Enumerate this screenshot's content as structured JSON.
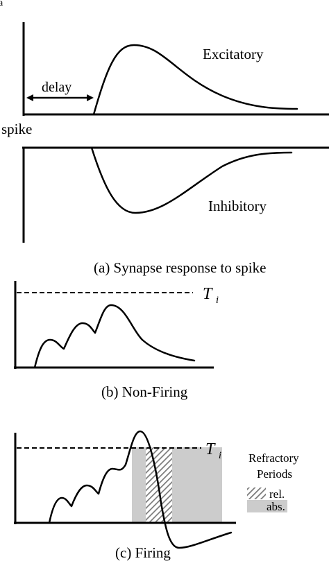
{
  "panel_a": {
    "corner_label": "a",
    "delay_label": "delay",
    "excitatory_label": "Excitatory",
    "spike_label": "spike",
    "inhibitory_label": "Inhibitory",
    "caption": "(a) Synapse response to spike"
  },
  "panel_b": {
    "threshold_symbol": "T",
    "threshold_subscript": "i",
    "caption": "(b) Non-Firing"
  },
  "panel_c": {
    "threshold_symbol": "T",
    "threshold_subscript": "i",
    "legend_title_line1": "Refractory",
    "legend_title_line2": "Periods",
    "legend_rel": "rel.",
    "legend_abs": "abs.",
    "caption": "(c) Firing"
  },
  "colors": {
    "line": "#000000",
    "refractory_absolute": "#cccccc",
    "refractory_relative_hatch": "#7a7a7a",
    "background": "#ffffff"
  }
}
